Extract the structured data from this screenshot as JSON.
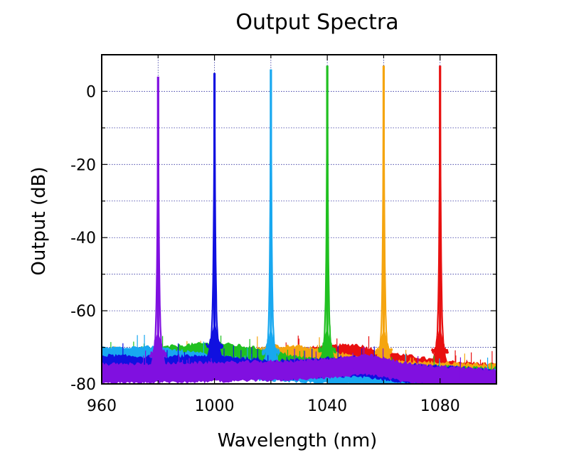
{
  "chart_data": {
    "type": "line",
    "title": "Output Spectra",
    "xlabel": "Wavelength (nm)",
    "ylabel": "Output (dB)",
    "xlim": [
      960,
      1100
    ],
    "ylim": [
      -80,
      10
    ],
    "xticks": [
      960,
      1000,
      1040,
      1080
    ],
    "yticks": [
      0,
      -20,
      -40,
      -60,
      -80
    ],
    "x_minor_step": 20,
    "y_minor_step": 10,
    "grid": true,
    "legend": "none",
    "background_color": "#ffffff",
    "grid_color": "#3030a0",
    "series": [
      {
        "color": "#e81010",
        "peak_x": 1080,
        "peak_y": 7,
        "floor": [
          [
            960,
            -76
          ],
          [
            1020,
            -73.5
          ],
          [
            1040,
            -72
          ],
          [
            1050,
            -71.5
          ],
          [
            1060,
            -73.5
          ],
          [
            1080,
            -76
          ],
          [
            1100,
            -77
          ]
        ]
      },
      {
        "color": "#f5a510",
        "peak_x": 1060,
        "peak_y": 7,
        "floor": [
          [
            960,
            -75.5
          ],
          [
            1000,
            -73.5
          ],
          [
            1020,
            -72
          ],
          [
            1030,
            -72
          ],
          [
            1045,
            -74
          ],
          [
            1060,
            -76
          ],
          [
            1100,
            -77
          ]
        ]
      },
      {
        "color": "#20c020",
        "peak_x": 1040,
        "peak_y": 7,
        "floor": [
          [
            960,
            -74.5
          ],
          [
            985,
            -72
          ],
          [
            1000,
            -71
          ],
          [
            1015,
            -72.5
          ],
          [
            1030,
            -75
          ],
          [
            1060,
            -77
          ],
          [
            1100,
            -78
          ]
        ]
      },
      {
        "color": "#18a8f0",
        "peak_x": 1020,
        "peak_y": 6,
        "floor": [
          [
            960,
            -72.5
          ],
          [
            975,
            -72
          ],
          [
            995,
            -74
          ],
          [
            1015,
            -76
          ],
          [
            1040,
            -77
          ],
          [
            1100,
            -78.5
          ]
        ]
      },
      {
        "color": "#1010e0",
        "peak_x": 1000,
        "peak_y": 5,
        "floor": [
          [
            960,
            -74.5
          ],
          [
            980,
            -75
          ],
          [
            1000,
            -74.5
          ],
          [
            1020,
            -76
          ],
          [
            1050,
            -75
          ],
          [
            1070,
            -77
          ],
          [
            1100,
            -78.5
          ]
        ]
      },
      {
        "color": "#8010e0",
        "peak_x": 980,
        "peak_y": 4,
        "floor": [
          [
            960,
            -77
          ],
          [
            1000,
            -76.5
          ],
          [
            1030,
            -76
          ],
          [
            1055,
            -74.5
          ],
          [
            1070,
            -77
          ],
          [
            1100,
            -78.5
          ]
        ]
      }
    ]
  }
}
